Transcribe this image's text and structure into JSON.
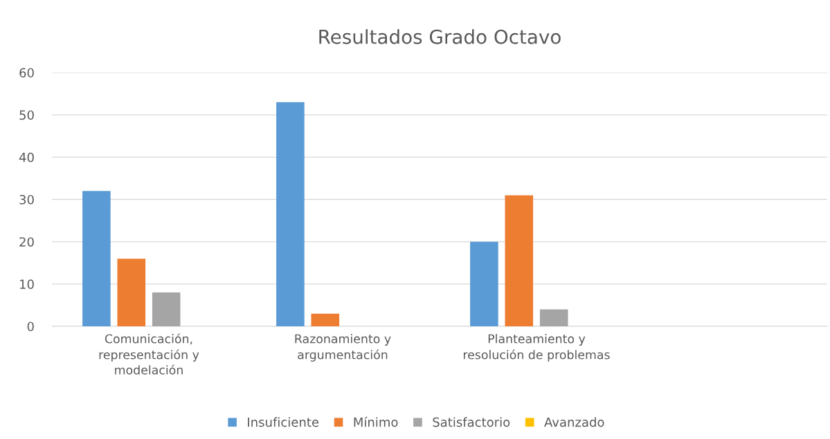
{
  "chart_data": {
    "type": "bar",
    "title": "Resultados Grado Octavo",
    "categories": [
      "Comunicación, representación y modelación",
      "Razonamiento y argumentación",
      "Planteamiento y resolución de problemas",
      null
    ],
    "series": [
      {
        "name": "Insuficiente",
        "color": "#5b9bd5",
        "values": [
          32,
          53,
          20,
          null
        ]
      },
      {
        "name": "Mínimo",
        "color": "#ed7d31",
        "values": [
          16,
          3,
          31,
          null
        ]
      },
      {
        "name": "Satisfactorio",
        "color": "#a5a5a5",
        "values": [
          8,
          0,
          4,
          null
        ]
      },
      {
        "name": "Avanzado",
        "color": "#ffc000",
        "values": [
          0,
          0,
          0,
          null
        ]
      }
    ],
    "ylim": [
      0,
      60
    ],
    "yticks": [
      0,
      10,
      20,
      30,
      40,
      50,
      60
    ],
    "grid": "y",
    "legend": "bottom"
  }
}
